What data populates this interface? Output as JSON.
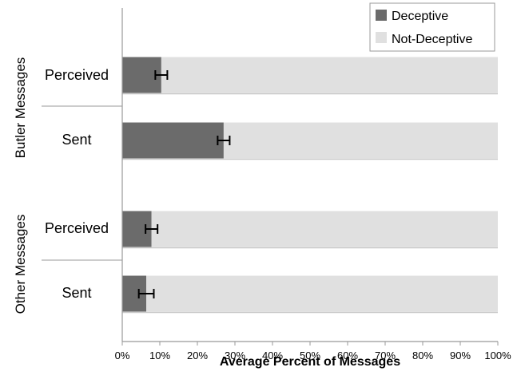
{
  "chart_data": {
    "type": "bar",
    "stacked": true,
    "orientation": "horizontal",
    "xlabel": "Average Percent of Messages",
    "xlim": [
      0,
      100
    ],
    "x_ticks": [
      "0%",
      "10%",
      "20%",
      "30%",
      "40%",
      "50%",
      "60%",
      "70%",
      "80%",
      "90%",
      "100%"
    ],
    "groups": [
      {
        "label": "Butler Messages",
        "categories": [
          "Perceived",
          "Sent"
        ]
      },
      {
        "label": "Other Messages",
        "categories": [
          "Perceived",
          "Sent"
        ]
      }
    ],
    "categories": [
      "Perceived",
      "Sent",
      "Perceived",
      "Sent"
    ],
    "series": [
      {
        "name": "Deceptive",
        "color": "#6b6b6b",
        "values": [
          10.4,
          27.0,
          7.8,
          6.4
        ],
        "error": [
          1.6,
          1.6,
          1.6,
          2.0
        ]
      },
      {
        "name": "Not-Deceptive",
        "color": "#e0e0e0",
        "values": [
          89.6,
          73.0,
          92.2,
          93.6
        ]
      }
    ],
    "legend_position": "top-right",
    "grid": false
  }
}
